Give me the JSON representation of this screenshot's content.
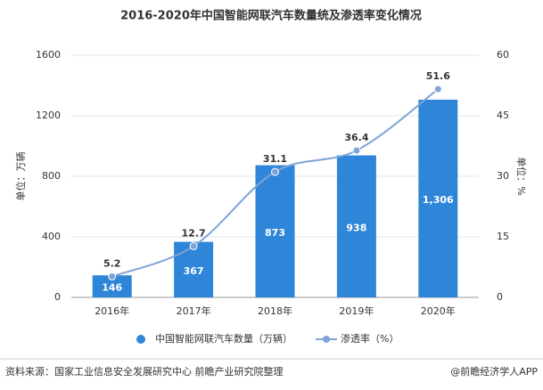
{
  "chart_data": {
    "type": "bar-line",
    "title": "2016-2020年中国智能网联汽车数量统及渗透率变化情况",
    "categories": [
      "2016年",
      "2017年",
      "2018年",
      "2019年",
      "2020年"
    ],
    "series": [
      {
        "name": "中国智能网联汽车数量（万辆）",
        "type": "bar",
        "color": "#2f86d8",
        "values": [
          146,
          367,
          873,
          938,
          1306
        ],
        "value_labels": [
          "146",
          "367",
          "873",
          "938",
          "1,306"
        ]
      },
      {
        "name": "渗透率（%）",
        "type": "line",
        "axis": "y2",
        "color": "#7ea3d9",
        "values": [
          5.2,
          12.7,
          31.1,
          36.4,
          51.6
        ]
      }
    ],
    "ylabel": "单位：万辆",
    "y2label": "单位：%",
    "ylim": [
      0,
      1600
    ],
    "yticks": [
      0,
      400,
      800,
      1200,
      1600
    ],
    "y2lim": [
      0,
      60
    ],
    "y2ticks": [
      0,
      15,
      30,
      45,
      60
    ],
    "legend": "bottom"
  },
  "footer": {
    "source": "资料来源：国家工业信息安全发展研究中心 前瞻产业研究院整理",
    "credit": "@前瞻经济学人APP"
  }
}
